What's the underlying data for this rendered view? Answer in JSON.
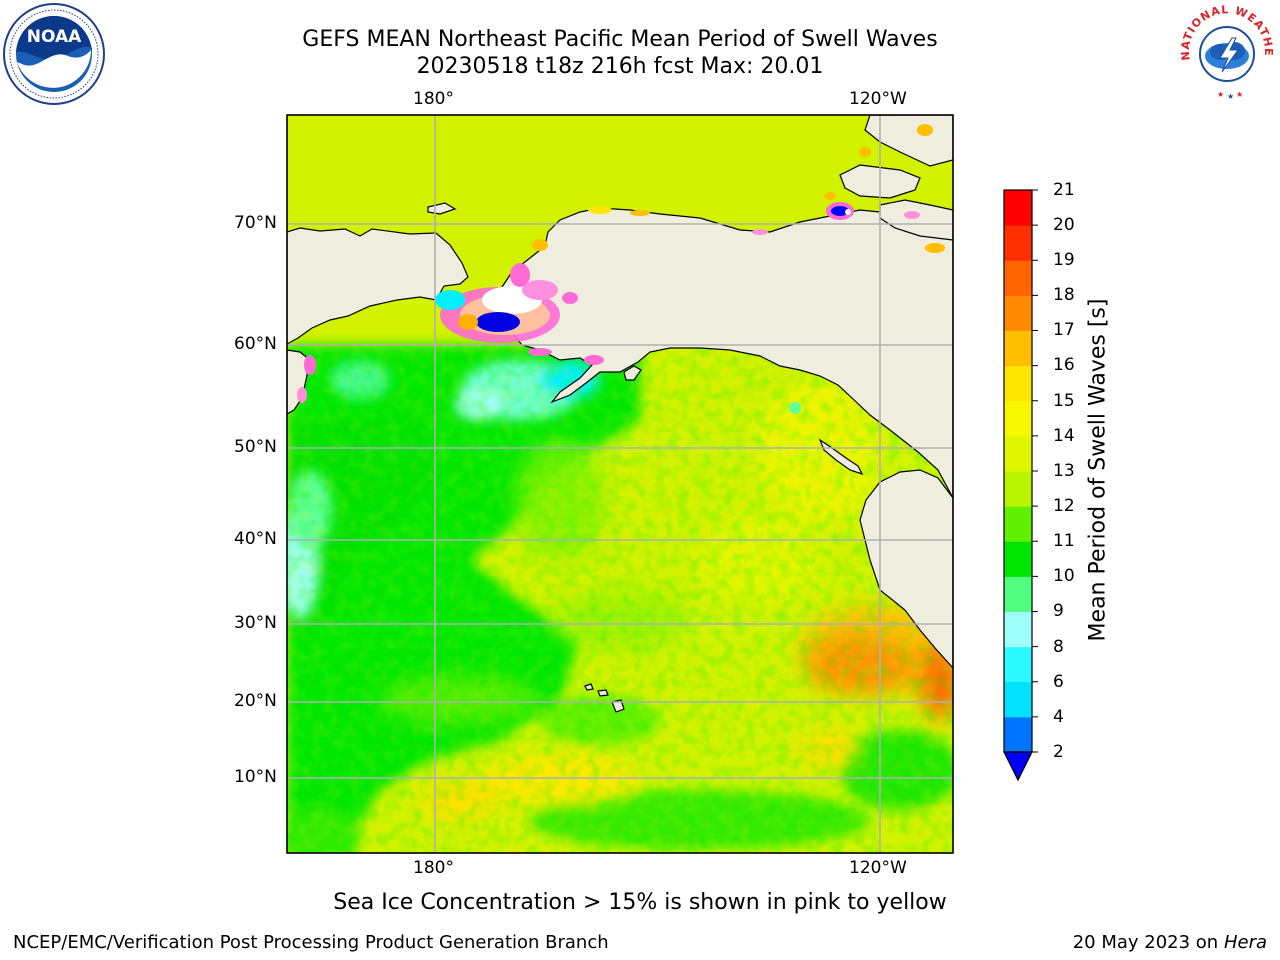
{
  "header": {
    "title_line1": "GEFS MEAN Northeast Pacific Mean Period of Swell Waves",
    "title_line2": "20230518 t18z 216h fcst   Max: 20.01"
  },
  "logos": {
    "left": "noaa-logo",
    "right": "nws-logo",
    "left_text": "NOAA",
    "right_text": "NATIONAL WEATHER SERVICE"
  },
  "map": {
    "lon_labels_top": [
      "180°",
      "120°W"
    ],
    "lon_labels_bottom": [
      "180°",
      "120°W"
    ],
    "lat_labels": [
      "70°N",
      "60°N",
      "50°N",
      "40°N",
      "30°N",
      "20°N",
      "10°N"
    ],
    "land_color": "#efedde",
    "grid_color": "#b0b0b0"
  },
  "colorbar": {
    "title": "Mean Period of Swell Waves [s]",
    "ticks": [
      "21",
      "20",
      "19",
      "18",
      "17",
      "16",
      "15",
      "14",
      "13",
      "12",
      "11",
      "10",
      "9",
      "8",
      "6",
      "4",
      "2"
    ],
    "colors_bottom_to_top": [
      "#0073ff",
      "#00e1ff",
      "#2bf8ff",
      "#a0fff8",
      "#50ff7f",
      "#00e600",
      "#60f000",
      "#b9f500",
      "#e0f500",
      "#f7f700",
      "#ffe600",
      "#ffbe00",
      "#ff8c00",
      "#ff6400",
      "#ff3000",
      "#ff0000"
    ],
    "extend_color": "#0000ff"
  },
  "footer": {
    "note": "Sea Ice Concentration > 15% is shown in pink to yellow",
    "credit": "NCEP/EMC/Verification Post Processing Product Generation Branch",
    "date": "20 May 2023 on",
    "host": "Hera"
  }
}
